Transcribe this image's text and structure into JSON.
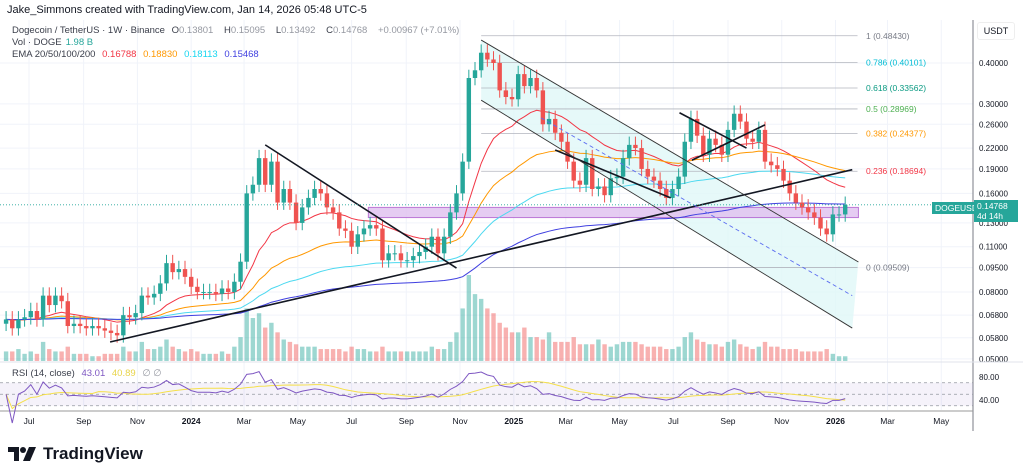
{
  "header": {
    "created_by": "Jake_Simmons created with TradingView.com, Jan 14, 2026 05:48 UTC-5"
  },
  "legend": {
    "symbol": "Dogecoin / TetherUS · 1W · Binance",
    "open_label": "O",
    "open": "0.13801",
    "high_label": "H",
    "high": "0.15095",
    "low_label": "L",
    "low": "0.13492",
    "close_label": "C",
    "close": "0.14768",
    "change": "+0.00967 (+7.01%)",
    "vol_label": "Vol · DOGE",
    "vol_value": "1.98 B",
    "ema_label": "EMA 20/50/100/200",
    "ema_values": [
      "0.16788",
      "0.18830",
      "0.18113",
      "0.15468"
    ],
    "rsi_label": "RSI (14, close)",
    "rsi_value": "43.01",
    "rsi_ma": "40.89",
    "rsi_extra": "∅ ∅"
  },
  "axis": {
    "currency": "USDT",
    "price_ticks": [
      "0.40000",
      "0.30000",
      "0.26000",
      "0.22000",
      "0.19000",
      "0.16000",
      "0.13000",
      "0.11000",
      "0.09500",
      "0.08000",
      "0.06800",
      "0.05800",
      "0.05000"
    ],
    "rsi_ticks": [
      "80.00",
      "40.00"
    ],
    "time_ticks": [
      {
        "label": "Jul",
        "date": "2023-07-01"
      },
      {
        "label": "Sep",
        "date": "2023-09-01"
      },
      {
        "label": "Nov",
        "date": "2023-11-01"
      },
      {
        "label": "2024",
        "date": "2024-01-01",
        "bold": true
      },
      {
        "label": "Mar",
        "date": "2024-03-01"
      },
      {
        "label": "May",
        "date": "2024-05-01"
      },
      {
        "label": "Jul",
        "date": "2024-07-01"
      },
      {
        "label": "Sep",
        "date": "2024-09-01"
      },
      {
        "label": "Nov",
        "date": "2024-11-01"
      },
      {
        "label": "2025",
        "date": "2025-01-01",
        "bold": true
      },
      {
        "label": "Mar",
        "date": "2025-03-01"
      },
      {
        "label": "May",
        "date": "2025-05-01"
      },
      {
        "label": "Jul",
        "date": "2025-07-01"
      },
      {
        "label": "Sep",
        "date": "2025-09-01"
      },
      {
        "label": "Nov",
        "date": "2025-11-01"
      },
      {
        "label": "2026",
        "date": "2026-01-01",
        "bold": true
      },
      {
        "label": "Mar",
        "date": "2026-03-01"
      },
      {
        "label": "May",
        "date": "2026-05-01"
      }
    ]
  },
  "price_tag": {
    "symbol": "DOGEUSDT",
    "price": "0.14768",
    "countdown": "4d 14h"
  },
  "colors": {
    "up": "#26a69a",
    "down": "#ef5350",
    "ema20": "#f23645",
    "ema50": "#ff9800",
    "ema100": "#4dd9f0",
    "ema200": "#3f3fe0",
    "rsi": "#7e57c2",
    "rsi_ma": "#f5e04a",
    "channel_fill": "#e0f7f8",
    "zone_fill": "#e1c4f0",
    "zone_border": "#b05fd0"
  },
  "chart_data": {
    "type": "candlestick",
    "interval": "1W",
    "first_week": "2023-06-05",
    "scale": "log",
    "closes": [
      0.066,
      0.062,
      0.066,
      0.067,
      0.07,
      0.066,
      0.078,
      0.073,
      0.078,
      0.075,
      0.063,
      0.064,
      0.063,
      0.062,
      0.063,
      0.062,
      0.061,
      0.06,
      0.059,
      0.068,
      0.067,
      0.069,
      0.078,
      0.077,
      0.079,
      0.085,
      0.098,
      0.092,
      0.094,
      0.089,
      0.083,
      0.08,
      0.08,
      0.08,
      0.079,
      0.082,
      0.08,
      0.086,
      0.099,
      0.16,
      0.17,
      0.205,
      0.17,
      0.2,
      0.15,
      0.165,
      0.15,
      0.13,
      0.145,
      0.155,
      0.165,
      0.16,
      0.145,
      0.14,
      0.125,
      0.123,
      0.11,
      0.12,
      0.125,
      0.128,
      0.125,
      0.1,
      0.105,
      0.105,
      0.1,
      0.1,
      0.103,
      0.106,
      0.11,
      0.118,
      0.105,
      0.118,
      0.14,
      0.16,
      0.2,
      0.36,
      0.38,
      0.43,
      0.41,
      0.4,
      0.33,
      0.315,
      0.31,
      0.37,
      0.34,
      0.36,
      0.33,
      0.26,
      0.27,
      0.245,
      0.23,
      0.2,
      0.175,
      0.17,
      0.205,
      0.165,
      0.168,
      0.158,
      0.178,
      0.18,
      0.205,
      0.225,
      0.22,
      0.19,
      0.18,
      0.175,
      0.165,
      0.155,
      0.165,
      0.18,
      0.23,
      0.27,
      0.24,
      0.21,
      0.235,
      0.225,
      0.21,
      0.25,
      0.28,
      0.265,
      0.235,
      0.23,
      0.25,
      0.2,
      0.195,
      0.19,
      0.175,
      0.16,
      0.15,
      0.145,
      0.14,
      0.135,
      0.125,
      0.12,
      0.138,
      0.138,
      0.14768
    ],
    "volumes_b": [
      4,
      4,
      5,
      3,
      4,
      3,
      8,
      5,
      4,
      4,
      6,
      3,
      3,
      3,
      2,
      2,
      3,
      3,
      3,
      6,
      4,
      4,
      8,
      5,
      5,
      6,
      9,
      6,
      5,
      4,
      5,
      4,
      3,
      3,
      3,
      4,
      3,
      6,
      10,
      22,
      18,
      20,
      14,
      16,
      12,
      9,
      8,
      7,
      6,
      6,
      6,
      5,
      5,
      5,
      5,
      4,
      6,
      5,
      5,
      4,
      4,
      6,
      4,
      4,
      4,
      4,
      4,
      4,
      4,
      6,
      5,
      5,
      8,
      12,
      22,
      36,
      28,
      26,
      22,
      20,
      16,
      14,
      12,
      12,
      14,
      10,
      10,
      9,
      12,
      8,
      8,
      8,
      10,
      7,
      7,
      7,
      9,
      7,
      6,
      7,
      8,
      8,
      8,
      7,
      6,
      6,
      6,
      5,
      5,
      6,
      10,
      12,
      9,
      8,
      7,
      7,
      6,
      8,
      9,
      7,
      6,
      5,
      6,
      8,
      6,
      6,
      5,
      5,
      5,
      4,
      4,
      4,
      4,
      5,
      3,
      2,
      1.98
    ],
    "fib_levels": [
      {
        "label": "1 (0.48430)",
        "price": 0.4843,
        "color": "#787b86"
      },
      {
        "label": "0.786 (0.40101)",
        "price": 0.40101,
        "color": "#00bcd4"
      },
      {
        "label": "0.618 (0.33562)",
        "price": 0.33562,
        "color": "#089981"
      },
      {
        "label": "0.5 (0.28969)",
        "price": 0.28969,
        "color": "#4caf50"
      },
      {
        "label": "0.382 (0.24377)",
        "price": 0.24377,
        "color": "#ff9800"
      },
      {
        "label": "0.236 (0.18694)",
        "price": 0.18694,
        "color": "#f23645"
      },
      {
        "label": "0 (0.09509)",
        "price": 0.09509,
        "color": "#787b86"
      }
    ],
    "fib_start": "2024-11-25",
    "fib_end": "2026-01-26",
    "trendlines": [
      {
        "from": [
          "2024-03-25",
          0.225
        ],
        "to": [
          "2024-10-28",
          0.0947
        ]
      },
      {
        "from": [
          "2023-10-01",
          0.0563
        ],
        "to": [
          "2026-01-20",
          0.189
        ]
      },
      {
        "from": [
          "2025-02-17",
          0.217
        ],
        "to": [
          "2025-06-28",
          0.155
        ]
      },
      {
        "from": [
          "2025-07-08",
          0.282
        ],
        "to": [
          "2025-09-22",
          0.22
        ]
      },
      {
        "from": [
          "2025-07-22",
          0.202
        ],
        "to": [
          "2025-10-13",
          0.259
        ]
      }
    ],
    "channel": {
      "upper": {
        "from": [
          "2024-11-25",
          0.47
        ],
        "to": [
          "2026-01-27",
          0.0988
        ]
      },
      "lower": {
        "from": [
          "2024-11-25",
          0.308
        ],
        "to": [
          "2026-01-20",
          0.0621
        ]
      },
      "mid": {
        "from": [
          "2025-02-01",
          0.272
        ],
        "to": [
          "2026-01-20",
          0.078
        ]
      }
    },
    "zone": {
      "from": "2024-07-20",
      "to": "2026-01-27",
      "top": 0.145,
      "bottom": 0.135
    }
  }
}
